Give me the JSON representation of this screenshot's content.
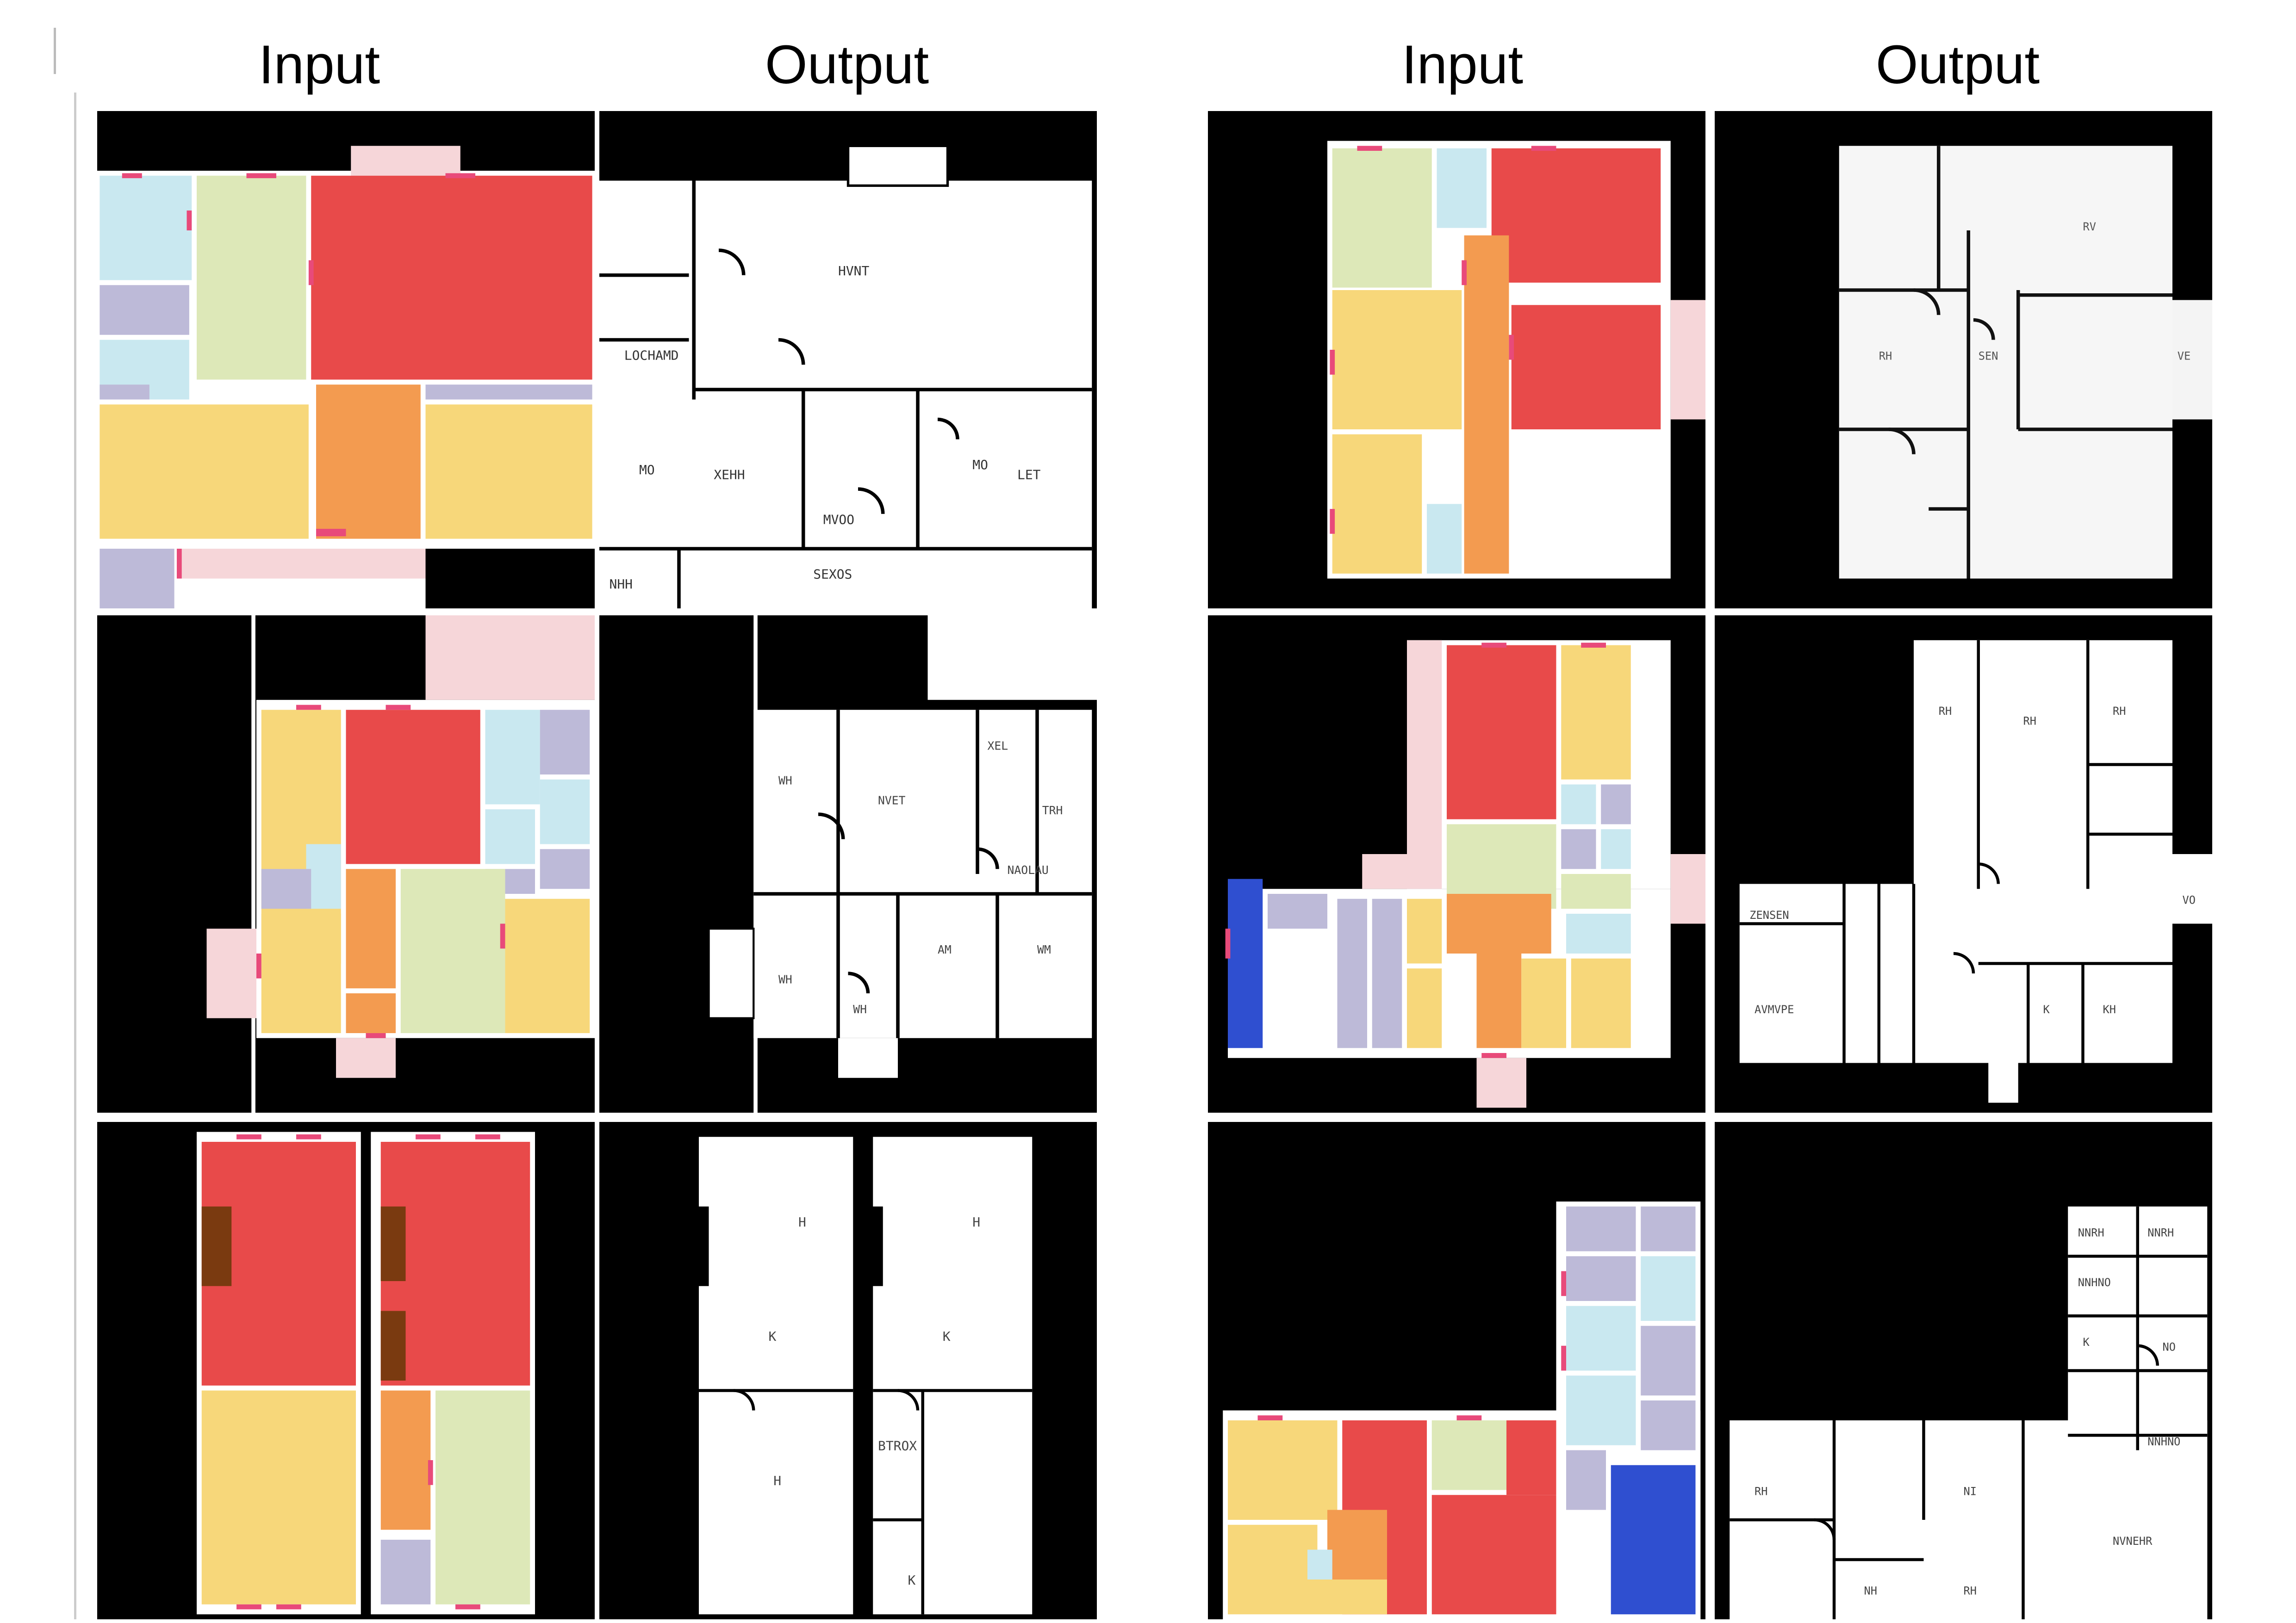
{
  "headers": {
    "left_input": "Input",
    "left_output": "Output",
    "right_input": "Input",
    "right_output": "Output"
  },
  "colors": {
    "background": "#000000",
    "living_room": "#e84a4a",
    "bedroom": "#f7d77a",
    "kitchen": "#dde8b8",
    "bathroom": "#c9e8f0",
    "closet": "#bdbad8",
    "hallway": "#f39b50",
    "balcony": "#f6d6d9",
    "storage": "#2f4fd0",
    "entrance": "#7a3a10",
    "door_marker": "#e84a7a",
    "output_plan": "#ffffff",
    "wall": "#000000"
  }
}
